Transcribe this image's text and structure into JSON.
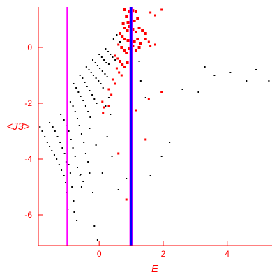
{
  "chart_data": {
    "type": "scatter",
    "title": "",
    "xlabel": "E",
    "ylabel": "<J3>",
    "xlim": [
      -1.9,
      5.4
    ],
    "ylim": [
      -7.1,
      1.45
    ],
    "x_ticks": [
      0,
      2,
      4
    ],
    "y_ticks": [
      0,
      -2,
      -4,
      -6
    ],
    "grid": false,
    "colors": {
      "axis": "#ff0000",
      "background_points": "#000000",
      "highlight_points": "#ff0000",
      "vline_left": "#ff00ff",
      "vline_right_core": "#0000ff",
      "vline_right_edge": "#ff00ff"
    },
    "vlines": [
      {
        "x": -1.0,
        "style": "magenta"
      },
      {
        "x": 1.0,
        "style": "blue-magenta"
      }
    ],
    "series": [
      {
        "role": "background",
        "points": [
          [
            -1.85,
            -2.85
          ],
          [
            -1.78,
            -3.0
          ],
          [
            -1.7,
            -3.2
          ],
          [
            -1.62,
            -3.4
          ],
          [
            -1.55,
            -3.55
          ],
          [
            -1.48,
            -3.7
          ],
          [
            -1.4,
            -3.85
          ],
          [
            -1.33,
            -4.0
          ],
          [
            -1.25,
            -4.2
          ],
          [
            -1.18,
            -4.4
          ],
          [
            -1.1,
            -4.6
          ],
          [
            -1.05,
            -4.85
          ],
          [
            -1.02,
            -5.2
          ],
          [
            -0.98,
            -5.8
          ],
          [
            -1.55,
            -2.7
          ],
          [
            -1.45,
            -2.85
          ],
          [
            -1.38,
            -3.0
          ],
          [
            -1.3,
            -3.2
          ],
          [
            -1.22,
            -3.4
          ],
          [
            -1.15,
            -3.6
          ],
          [
            -1.08,
            -3.8
          ],
          [
            -1.03,
            -4.1
          ],
          [
            -0.95,
            -4.2
          ],
          [
            -0.9,
            -4.5
          ],
          [
            -0.85,
            -5.0
          ],
          [
            -0.8,
            -5.5
          ],
          [
            -0.78,
            -5.9
          ],
          [
            -0.7,
            -6.2
          ],
          [
            -1.2,
            -2.4
          ],
          [
            -1.1,
            -2.6
          ],
          [
            -1.0,
            -2.8
          ],
          [
            -0.95,
            -3.0
          ],
          [
            -0.88,
            -3.3
          ],
          [
            -0.82,
            -3.6
          ],
          [
            -0.75,
            -3.9
          ],
          [
            -0.68,
            -4.3
          ],
          [
            -0.6,
            -4.6
          ],
          [
            -0.55,
            -5.0
          ],
          [
            -0.5,
            -4.8
          ],
          [
            -0.58,
            -4.55
          ],
          [
            -0.9,
            -1.95
          ],
          [
            -0.82,
            -2.1
          ],
          [
            -0.75,
            -2.3
          ],
          [
            -0.68,
            -2.55
          ],
          [
            -0.62,
            -2.8
          ],
          [
            -0.55,
            -3.1
          ],
          [
            -0.48,
            -3.4
          ],
          [
            -0.42,
            -3.8
          ],
          [
            -0.35,
            -4.1
          ],
          [
            -0.3,
            -4.5
          ],
          [
            -0.2,
            -5.2
          ],
          [
            -0.15,
            -6.4
          ],
          [
            -0.05,
            -6.9
          ],
          [
            0.1,
            -4.5
          ],
          [
            0.25,
            -3.2
          ],
          [
            -0.8,
            -1.3
          ],
          [
            -0.72,
            -1.45
          ],
          [
            -0.65,
            -1.6
          ],
          [
            -0.58,
            -1.75
          ],
          [
            -0.5,
            -1.9
          ],
          [
            -0.42,
            -2.1
          ],
          [
            -0.35,
            -2.3
          ],
          [
            -0.28,
            -2.5
          ],
          [
            -0.6,
            -1.0
          ],
          [
            -0.52,
            -1.1
          ],
          [
            -0.45,
            -1.25
          ],
          [
            -0.38,
            -1.4
          ],
          [
            -0.3,
            -1.55
          ],
          [
            -0.22,
            -1.7
          ],
          [
            -0.15,
            -1.85
          ],
          [
            -0.08,
            -2.0
          ],
          [
            -0.4,
            -0.7
          ],
          [
            -0.32,
            -0.8
          ],
          [
            -0.25,
            -0.9
          ],
          [
            -0.18,
            -1.0
          ],
          [
            -0.1,
            -1.1
          ],
          [
            -0.02,
            -1.2
          ],
          [
            0.05,
            -1.3
          ],
          [
            0.12,
            -1.45
          ],
          [
            -0.2,
            -0.45
          ],
          [
            -0.12,
            -0.55
          ],
          [
            -0.05,
            -0.65
          ],
          [
            0.02,
            -0.75
          ],
          [
            0.1,
            -0.85
          ],
          [
            0.18,
            -0.95
          ],
          [
            0.25,
            -1.05
          ],
          [
            0.0,
            -0.25
          ],
          [
            0.08,
            -0.35
          ],
          [
            0.15,
            -0.45
          ],
          [
            0.22,
            -0.55
          ],
          [
            0.3,
            -0.6
          ],
          [
            0.2,
            -0.05
          ],
          [
            0.28,
            -0.15
          ],
          [
            0.35,
            -0.25
          ],
          [
            0.42,
            -0.35
          ],
          [
            0.5,
            -0.45
          ],
          [
            0.45,
            0.3
          ],
          [
            0.55,
            0.45
          ],
          [
            0.6,
            0.1
          ],
          [
            0.65,
            0.2
          ],
          [
            0.2,
            -2.1
          ],
          [
            0.3,
            -1.8
          ],
          [
            0.35,
            -2.4
          ],
          [
            -0.3,
            -2.9
          ],
          [
            -0.1,
            -3.5
          ],
          [
            0.4,
            -3.9
          ],
          [
            0.6,
            -5.1
          ],
          [
            0.85,
            -4.7
          ],
          [
            1.25,
            -0.5
          ],
          [
            1.3,
            -1.2
          ],
          [
            1.45,
            -1.8
          ],
          [
            1.6,
            -4.6
          ],
          [
            1.95,
            -3.9
          ],
          [
            2.2,
            -3.4
          ],
          [
            2.6,
            -1.5
          ],
          [
            3.1,
            -1.6
          ],
          [
            3.3,
            -0.7
          ],
          [
            3.6,
            -1.0
          ],
          [
            4.1,
            -0.9
          ],
          [
            4.6,
            -1.2
          ],
          [
            5.3,
            -1.2
          ],
          [
            4.9,
            -0.8
          ]
        ]
      },
      {
        "role": "highlight",
        "points": [
          [
            0.8,
            1.35
          ],
          [
            0.95,
            1.3
          ],
          [
            1.05,
            1.32
          ],
          [
            1.15,
            1.28
          ],
          [
            0.85,
            1.1
          ],
          [
            0.9,
            0.9
          ],
          [
            1.0,
            1.0
          ],
          [
            1.1,
            0.95
          ],
          [
            1.2,
            1.05
          ],
          [
            0.75,
            0.85
          ],
          [
            0.8,
            0.7
          ],
          [
            0.88,
            0.6
          ],
          [
            0.95,
            0.75
          ],
          [
            1.05,
            0.65
          ],
          [
            1.15,
            0.55
          ],
          [
            1.25,
            0.7
          ],
          [
            1.35,
            0.6
          ],
          [
            1.45,
            0.5
          ],
          [
            0.65,
            0.5
          ],
          [
            0.72,
            0.4
          ],
          [
            0.8,
            0.3
          ],
          [
            0.9,
            0.25
          ],
          [
            1.0,
            0.35
          ],
          [
            1.1,
            0.2
          ],
          [
            1.2,
            0.3
          ],
          [
            1.3,
            0.15
          ],
          [
            1.45,
            0.3
          ],
          [
            1.55,
            0.2
          ],
          [
            0.6,
            0.1
          ],
          [
            0.7,
            0.0
          ],
          [
            0.78,
            -0.1
          ],
          [
            0.85,
            -0.2
          ],
          [
            0.95,
            -0.05
          ],
          [
            1.05,
            0.05
          ],
          [
            1.15,
            -0.1
          ],
          [
            1.25,
            0.0
          ],
          [
            1.6,
            0.05
          ],
          [
            1.75,
            0.1
          ],
          [
            0.5,
            -0.3
          ],
          [
            0.58,
            -0.4
          ],
          [
            0.65,
            -0.5
          ],
          [
            0.72,
            -0.6
          ],
          [
            0.8,
            -0.7
          ],
          [
            0.88,
            -0.55
          ],
          [
            0.55,
            -0.75
          ],
          [
            0.62,
            -0.9
          ],
          [
            0.7,
            -1.0
          ],
          [
            0.42,
            -1.15
          ],
          [
            0.5,
            -1.3
          ],
          [
            0.3,
            -1.5
          ],
          [
            0.38,
            -1.7
          ],
          [
            0.1,
            -1.95
          ],
          [
            0.15,
            -2.15
          ],
          [
            0.12,
            -2.35
          ],
          [
            0.3,
            -2.1
          ],
          [
            1.15,
            -2.25
          ],
          [
            1.55,
            -1.85
          ],
          [
            1.95,
            -1.6
          ],
          [
            1.45,
            -3.3
          ],
          [
            0.6,
            -3.8
          ],
          [
            0.85,
            -5.45
          ],
          [
            1.95,
            1.35
          ],
          [
            1.75,
            1.15
          ],
          [
            1.6,
            1.25
          ]
        ]
      }
    ]
  }
}
